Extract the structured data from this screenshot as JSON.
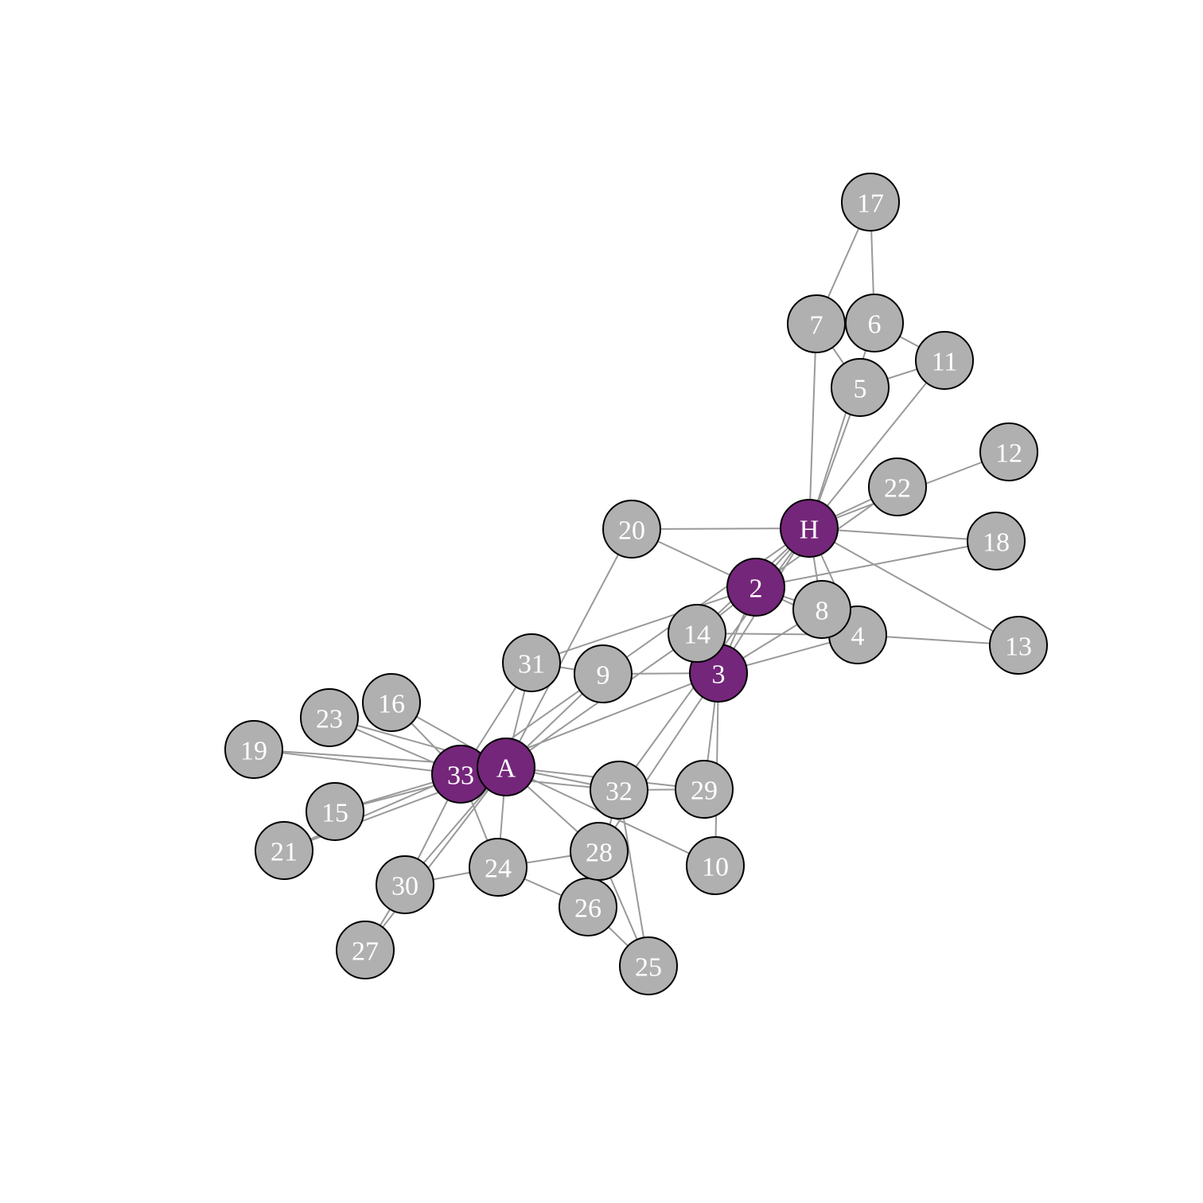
{
  "colors": {
    "background": "#ffffff",
    "edge": "#999999",
    "node_default": "#b0b0b0",
    "node_highlight": "#74267a",
    "node_outline": "#000000",
    "label": "#ffffff"
  },
  "nodes": [
    {
      "id": "H",
      "label": "H",
      "highlight": true
    },
    {
      "id": "2",
      "label": "2",
      "highlight": true
    },
    {
      "id": "3",
      "label": "3",
      "highlight": true
    },
    {
      "id": "4",
      "label": "4",
      "highlight": false
    },
    {
      "id": "5",
      "label": "5",
      "highlight": false
    },
    {
      "id": "6",
      "label": "6",
      "highlight": false
    },
    {
      "id": "7",
      "label": "7",
      "highlight": false
    },
    {
      "id": "8",
      "label": "8",
      "highlight": false
    },
    {
      "id": "9",
      "label": "9",
      "highlight": false
    },
    {
      "id": "10",
      "label": "10",
      "highlight": false
    },
    {
      "id": "11",
      "label": "11",
      "highlight": false
    },
    {
      "id": "12",
      "label": "12",
      "highlight": false
    },
    {
      "id": "13",
      "label": "13",
      "highlight": false
    },
    {
      "id": "14",
      "label": "14",
      "highlight": false
    },
    {
      "id": "15",
      "label": "15",
      "highlight": false
    },
    {
      "id": "16",
      "label": "16",
      "highlight": false
    },
    {
      "id": "17",
      "label": "17",
      "highlight": false
    },
    {
      "id": "18",
      "label": "18",
      "highlight": false
    },
    {
      "id": "19",
      "label": "19",
      "highlight": false
    },
    {
      "id": "20",
      "label": "20",
      "highlight": false
    },
    {
      "id": "21",
      "label": "21",
      "highlight": false
    },
    {
      "id": "22",
      "label": "22",
      "highlight": false
    },
    {
      "id": "23",
      "label": "23",
      "highlight": false
    },
    {
      "id": "24",
      "label": "24",
      "highlight": false
    },
    {
      "id": "25",
      "label": "25",
      "highlight": false
    },
    {
      "id": "26",
      "label": "26",
      "highlight": false
    },
    {
      "id": "27",
      "label": "27",
      "highlight": false
    },
    {
      "id": "28",
      "label": "28",
      "highlight": false
    },
    {
      "id": "29",
      "label": "29",
      "highlight": false
    },
    {
      "id": "30",
      "label": "30",
      "highlight": false
    },
    {
      "id": "31",
      "label": "31",
      "highlight": false
    },
    {
      "id": "32",
      "label": "32",
      "highlight": false
    },
    {
      "id": "33",
      "label": "33",
      "highlight": true
    },
    {
      "id": "A",
      "label": "A",
      "highlight": true
    }
  ],
  "edges": [
    [
      "H",
      "2"
    ],
    [
      "H",
      "3"
    ],
    [
      "H",
      "4"
    ],
    [
      "H",
      "5"
    ],
    [
      "H",
      "6"
    ],
    [
      "H",
      "7"
    ],
    [
      "H",
      "8"
    ],
    [
      "H",
      "9"
    ],
    [
      "H",
      "11"
    ],
    [
      "H",
      "12"
    ],
    [
      "H",
      "13"
    ],
    [
      "H",
      "14"
    ],
    [
      "H",
      "18"
    ],
    [
      "H",
      "20"
    ],
    [
      "H",
      "22"
    ],
    [
      "H",
      "32"
    ],
    [
      "2",
      "3"
    ],
    [
      "2",
      "4"
    ],
    [
      "2",
      "8"
    ],
    [
      "2",
      "14"
    ],
    [
      "2",
      "18"
    ],
    [
      "2",
      "20"
    ],
    [
      "2",
      "22"
    ],
    [
      "2",
      "31"
    ],
    [
      "3",
      "4"
    ],
    [
      "3",
      "8"
    ],
    [
      "3",
      "9"
    ],
    [
      "3",
      "10"
    ],
    [
      "3",
      "14"
    ],
    [
      "3",
      "28"
    ],
    [
      "3",
      "29"
    ],
    [
      "3",
      "33"
    ],
    [
      "4",
      "8"
    ],
    [
      "4",
      "13"
    ],
    [
      "4",
      "14"
    ],
    [
      "5",
      "7"
    ],
    [
      "5",
      "11"
    ],
    [
      "6",
      "7"
    ],
    [
      "6",
      "11"
    ],
    [
      "6",
      "17"
    ],
    [
      "7",
      "17"
    ],
    [
      "9",
      "31"
    ],
    [
      "9",
      "33"
    ],
    [
      "9",
      "A"
    ],
    [
      "10",
      "A"
    ],
    [
      "14",
      "A"
    ],
    [
      "15",
      "33"
    ],
    [
      "15",
      "A"
    ],
    [
      "16",
      "33"
    ],
    [
      "16",
      "A"
    ],
    [
      "19",
      "33"
    ],
    [
      "19",
      "A"
    ],
    [
      "20",
      "A"
    ],
    [
      "21",
      "33"
    ],
    [
      "21",
      "A"
    ],
    [
      "23",
      "33"
    ],
    [
      "23",
      "A"
    ],
    [
      "24",
      "26"
    ],
    [
      "24",
      "28"
    ],
    [
      "24",
      "30"
    ],
    [
      "24",
      "33"
    ],
    [
      "24",
      "A"
    ],
    [
      "25",
      "26"
    ],
    [
      "25",
      "28"
    ],
    [
      "25",
      "32"
    ],
    [
      "26",
      "32"
    ],
    [
      "27",
      "30"
    ],
    [
      "27",
      "A"
    ],
    [
      "28",
      "A"
    ],
    [
      "29",
      "32"
    ],
    [
      "29",
      "A"
    ],
    [
      "30",
      "33"
    ],
    [
      "30",
      "A"
    ],
    [
      "31",
      "33"
    ],
    [
      "31",
      "A"
    ],
    [
      "32",
      "33"
    ],
    [
      "32",
      "A"
    ],
    [
      "33",
      "A"
    ]
  ]
}
